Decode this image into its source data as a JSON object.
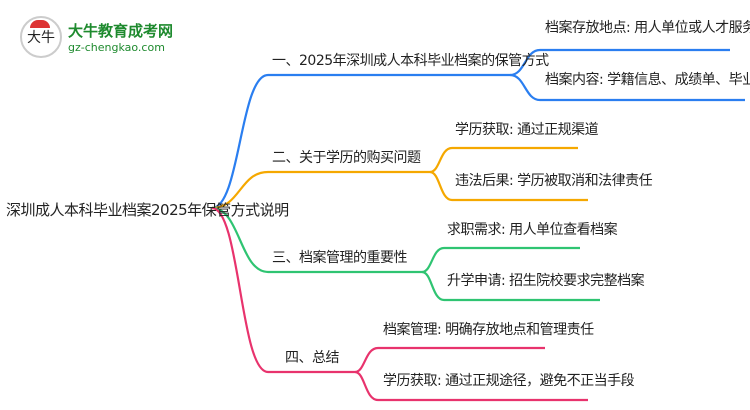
{
  "logo": {
    "name": "大牛教育成考网",
    "url": "gz-chengkao.com",
    "mark": "大牛"
  },
  "root": "深圳成人本科毕业档案2025年保管方式说明",
  "colors": {
    "blue": "#2a7ef0",
    "orange": "#f5a800",
    "green": "#2fc472",
    "pink": "#e8336d"
  },
  "branches": [
    {
      "label": "一、2025年深圳成人本科毕业档案的保管方式",
      "leaves": [
        "档案存放地点: 用人单位或人才服务中心",
        "档案内容: 学籍信息、成绩单、毕业论文成绩"
      ]
    },
    {
      "label": "二、关于学历的购买问题",
      "leaves": [
        "学历获取: 通过正规渠道",
        "违法后果: 学历被取消和法律责任"
      ]
    },
    {
      "label": "三、档案管理的重要性",
      "leaves": [
        "求职需求: 用人单位查看档案",
        "升学申请: 招生院校要求完整档案"
      ]
    },
    {
      "label": "四、总结",
      "leaves": [
        "档案管理: 明确存放地点和管理责任",
        "学历获取: 通过正规途径，避免不正当手段"
      ]
    }
  ]
}
